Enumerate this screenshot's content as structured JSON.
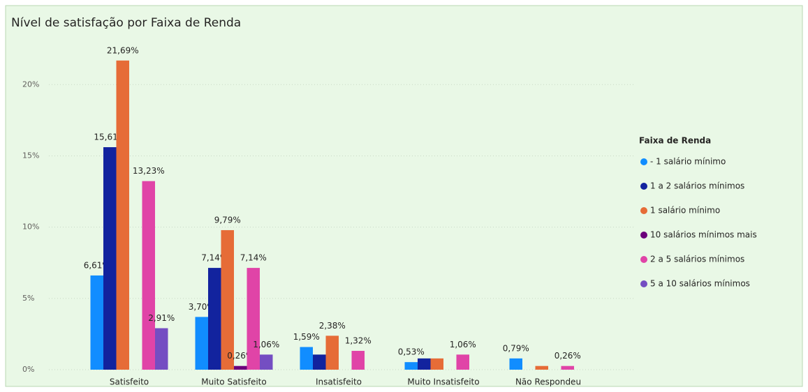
{
  "chart_data": {
    "type": "bar",
    "title": "Nível de satisfação por Faixa de Renda",
    "categories": [
      "Satisfeito",
      "Muito Satisfeito",
      "Insatisfeito",
      "Muito Insatisfeito",
      "Não Respondeu"
    ],
    "legend_title": "Faixa de Renda",
    "legend": "right",
    "grid": true,
    "ylim": [
      0,
      23
    ],
    "yticks": [
      {
        "value": 0,
        "label": "0%"
      },
      {
        "value": 5,
        "label": "5%"
      },
      {
        "value": 10,
        "label": "10%"
      },
      {
        "value": 15,
        "label": "15%"
      },
      {
        "value": 20,
        "label": "20%"
      }
    ],
    "series": [
      {
        "name": "- 1 salário mínimo",
        "color": "#118DFF",
        "values": [
          6.61,
          3.7,
          1.59,
          0.53,
          0.79
        ],
        "value_labels": [
          "6,61%",
          "3,70%",
          "1,59%",
          "0,53%",
          "0,79%"
        ]
      },
      {
        "name": "1 a 2 salários mínimos",
        "color": "#12239E",
        "values": [
          15.61,
          7.14,
          1.06,
          0.79,
          null
        ],
        "value_labels": [
          "15,61%",
          "7,14%",
          null,
          null,
          null
        ]
      },
      {
        "name": "1 salário mínimo",
        "color": "#E66C37",
        "values": [
          21.69,
          9.79,
          2.38,
          0.79,
          0.26
        ],
        "value_labels": [
          "21,69%",
          "9,79%",
          "2,38%",
          null,
          null
        ]
      },
      {
        "name": "10 salários mínimos mais",
        "color": "#6B007B",
        "values": [
          null,
          0.26,
          null,
          null,
          null
        ],
        "value_labels": [
          null,
          "0,26%",
          null,
          null,
          null
        ]
      },
      {
        "name": "2 a 5 salários mínimos",
        "color": "#E044A7",
        "values": [
          13.23,
          7.14,
          1.32,
          1.06,
          0.26
        ],
        "value_labels": [
          "13,23%",
          "7,14%",
          "1,32%",
          "1,06%",
          "0,26%"
        ]
      },
      {
        "name": "5 a 10 salários mínimos",
        "color": "#744EC2",
        "values": [
          2.91,
          1.06,
          null,
          null,
          null
        ],
        "value_labels": [
          "2,91%",
          "1,06%",
          null,
          null,
          null
        ]
      }
    ]
  }
}
